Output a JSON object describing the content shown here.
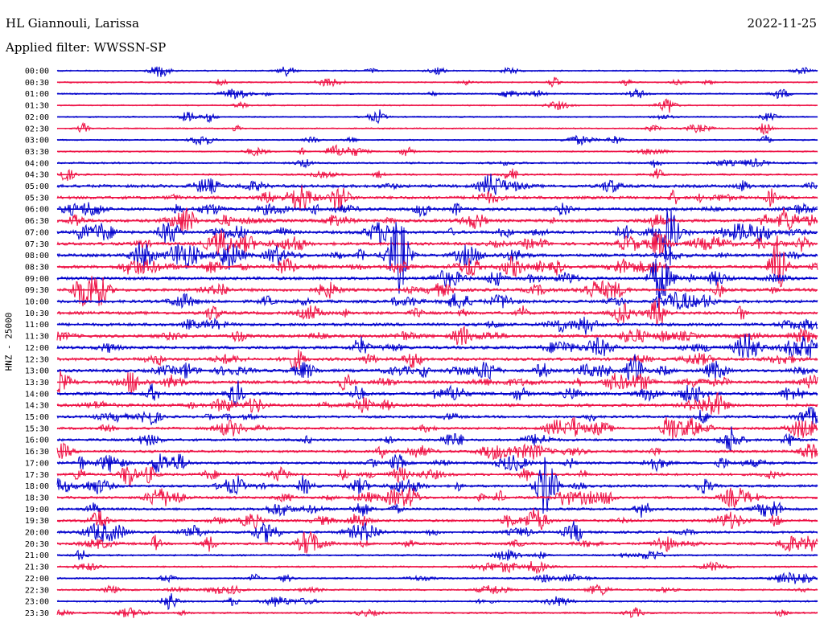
{
  "header": {
    "station": "HL Giannouli, Larissa",
    "date": "2022-11-25",
    "filter": "Applied filter: WWSSN-SP"
  },
  "channel_label": "HNZ - 25000",
  "colors": {
    "blue_trace": "#0000cc",
    "red_trace": "#ee1144"
  },
  "chart_data": {
    "type": "line",
    "title": "HL Giannouli, Larissa",
    "subtitle": "Applied filter: WWSSN-SP",
    "ylabel": "HNZ - 25000",
    "xlabel": "",
    "row_interval_minutes": 30,
    "ylim": [
      "00:00",
      "23:30"
    ],
    "grid": false,
    "categories": [
      "00:00",
      "00:30",
      "01:00",
      "01:30",
      "02:00",
      "02:30",
      "03:00",
      "03:30",
      "04:00",
      "04:30",
      "05:00",
      "05:30",
      "06:00",
      "06:30",
      "07:00",
      "07:30",
      "08:00",
      "08:30",
      "09:00",
      "09:30",
      "10:00",
      "10:30",
      "11:00",
      "11:30",
      "12:00",
      "12:30",
      "13:00",
      "13:30",
      "14:00",
      "14:30",
      "15:00",
      "15:30",
      "16:00",
      "16:30",
      "17:00",
      "17:30",
      "18:00",
      "18:30",
      "19:00",
      "19:30",
      "20:00",
      "20:30",
      "21:00",
      "21:30",
      "22:00",
      "22:30",
      "23:00",
      "23:30"
    ],
    "series": [
      {
        "color": "#0000cc",
        "rows": "even (00:00, 01:00, ...)"
      },
      {
        "color": "#ee1144",
        "rows": "odd (00:30, 01:30, ...)"
      }
    ]
  }
}
